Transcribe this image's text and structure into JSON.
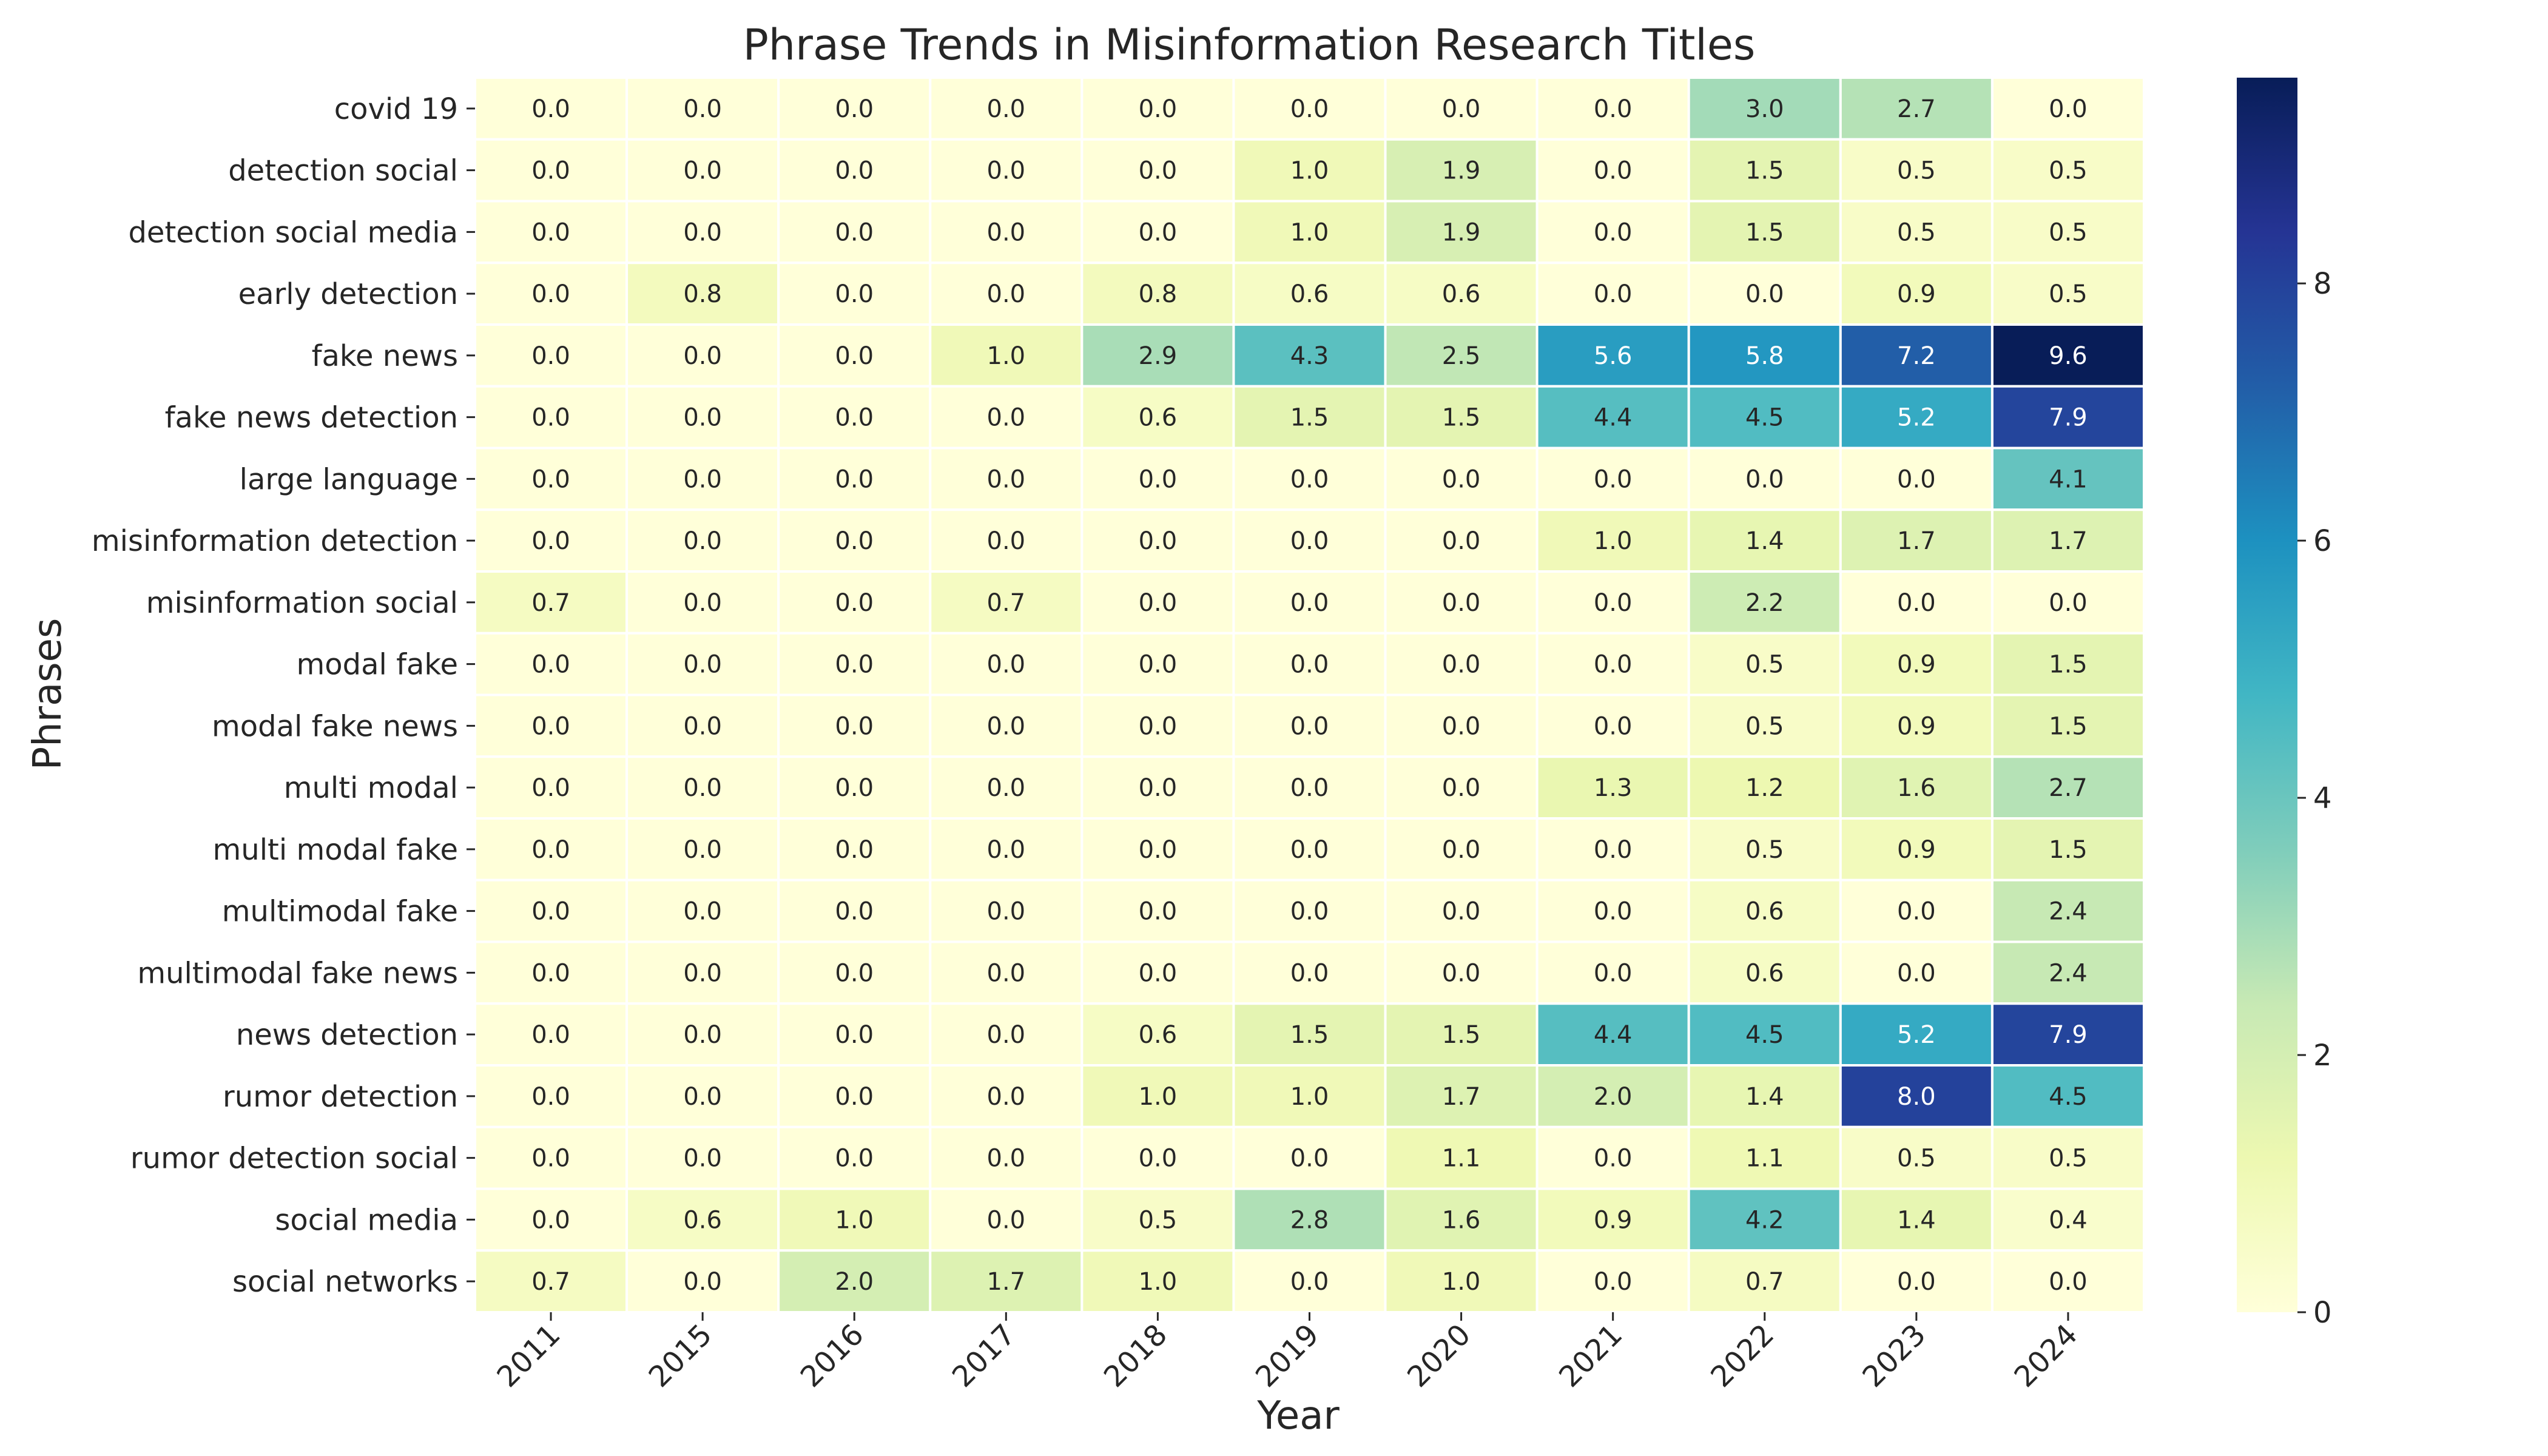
{
  "chart_data": {
    "type": "heatmap",
    "title": "Phrase Trends in Misinformation Research Titles",
    "xlabel": "Year",
    "ylabel": "Phrases",
    "x": [
      "2011",
      "2015",
      "2016",
      "2017",
      "2018",
      "2019",
      "2020",
      "2021",
      "2022",
      "2023",
      "2024"
    ],
    "y": [
      "covid 19",
      "detection social",
      "detection social media",
      "early detection",
      "fake news",
      "fake news detection",
      "large language",
      "misinformation detection",
      "misinformation social",
      "modal fake",
      "modal fake news",
      "multi modal",
      "multi modal fake",
      "multimodal fake",
      "multimodal fake news",
      "news detection",
      "rumor detection",
      "rumor detection social",
      "social media",
      "social networks"
    ],
    "values": [
      [
        0.0,
        0.0,
        0.0,
        0.0,
        0.0,
        0.0,
        0.0,
        0.0,
        3.0,
        2.7,
        0.0
      ],
      [
        0.0,
        0.0,
        0.0,
        0.0,
        0.0,
        1.0,
        1.9,
        0.0,
        1.5,
        0.5,
        0.5
      ],
      [
        0.0,
        0.0,
        0.0,
        0.0,
        0.0,
        1.0,
        1.9,
        0.0,
        1.5,
        0.5,
        0.5
      ],
      [
        0.0,
        0.8,
        0.0,
        0.0,
        0.8,
        0.6,
        0.6,
        0.0,
        0.0,
        0.9,
        0.5
      ],
      [
        0.0,
        0.0,
        0.0,
        1.0,
        2.9,
        4.3,
        2.5,
        5.6,
        5.8,
        7.2,
        9.6
      ],
      [
        0.0,
        0.0,
        0.0,
        0.0,
        0.6,
        1.5,
        1.5,
        4.4,
        4.5,
        5.2,
        7.9
      ],
      [
        0.0,
        0.0,
        0.0,
        0.0,
        0.0,
        0.0,
        0.0,
        0.0,
        0.0,
        0.0,
        4.1
      ],
      [
        0.0,
        0.0,
        0.0,
        0.0,
        0.0,
        0.0,
        0.0,
        1.0,
        1.4,
        1.7,
        1.7
      ],
      [
        0.7,
        0.0,
        0.0,
        0.7,
        0.0,
        0.0,
        0.0,
        0.0,
        2.2,
        0.0,
        0.0
      ],
      [
        0.0,
        0.0,
        0.0,
        0.0,
        0.0,
        0.0,
        0.0,
        0.0,
        0.5,
        0.9,
        1.5
      ],
      [
        0.0,
        0.0,
        0.0,
        0.0,
        0.0,
        0.0,
        0.0,
        0.0,
        0.5,
        0.9,
        1.5
      ],
      [
        0.0,
        0.0,
        0.0,
        0.0,
        0.0,
        0.0,
        0.0,
        1.3,
        1.2,
        1.6,
        2.7
      ],
      [
        0.0,
        0.0,
        0.0,
        0.0,
        0.0,
        0.0,
        0.0,
        0.0,
        0.5,
        0.9,
        1.5
      ],
      [
        0.0,
        0.0,
        0.0,
        0.0,
        0.0,
        0.0,
        0.0,
        0.0,
        0.6,
        0.0,
        2.4
      ],
      [
        0.0,
        0.0,
        0.0,
        0.0,
        0.0,
        0.0,
        0.0,
        0.0,
        0.6,
        0.0,
        2.4
      ],
      [
        0.0,
        0.0,
        0.0,
        0.0,
        0.6,
        1.5,
        1.5,
        4.4,
        4.5,
        5.2,
        7.9
      ],
      [
        0.0,
        0.0,
        0.0,
        0.0,
        1.0,
        1.0,
        1.7,
        2.0,
        1.4,
        8.0,
        4.5
      ],
      [
        0.0,
        0.0,
        0.0,
        0.0,
        0.0,
        0.0,
        1.1,
        0.0,
        1.1,
        0.5,
        0.5
      ],
      [
        0.0,
        0.6,
        1.0,
        0.0,
        0.5,
        2.8,
        1.6,
        0.9,
        4.2,
        1.4,
        0.4
      ],
      [
        0.7,
        0.0,
        2.0,
        1.7,
        1.0,
        0.0,
        1.0,
        0.0,
        0.7,
        0.0,
        0.0
      ]
    ],
    "value_format": "0.0",
    "colormap": "YlGnBu",
    "colormap_stops": [
      "#ffffd9",
      "#edf8b1",
      "#c7e9b4",
      "#7fcdbb",
      "#41b6c4",
      "#1d91c0",
      "#225ea8",
      "#253494",
      "#081d58"
    ],
    "vmin": 0,
    "vmax": 9.6,
    "colorbar_ticks": [
      "0",
      "2",
      "4",
      "6",
      "8"
    ],
    "colorbar_tick_values": [
      0,
      2,
      4,
      6,
      8
    ]
  }
}
